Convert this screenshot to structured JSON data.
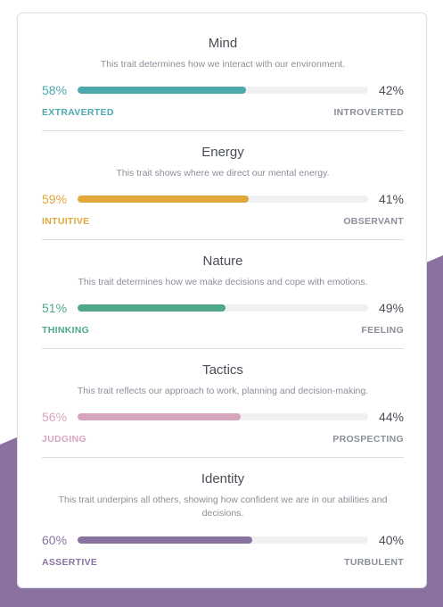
{
  "colors": {
    "mind": "#4ea9ad",
    "energy": "#e0a83b",
    "nature": "#4fa88b",
    "tactics": "#d7a4be",
    "identity": "#8a72a0",
    "background_shape": "#8a72a0"
  },
  "traits": [
    {
      "title": "Mind",
      "description": "This trait determines how we interact with our environment.",
      "left_percent": "58%",
      "right_percent": "42%",
      "left_label": "EXTRAVERTED",
      "right_label": "INTROVERTED",
      "fill": 0.58
    },
    {
      "title": "Energy",
      "description": "This trait shows where we direct our mental energy.",
      "left_percent": "59%",
      "right_percent": "41%",
      "left_label": "INTUITIVE",
      "right_label": "OBSERVANT",
      "fill": 0.59
    },
    {
      "title": "Nature",
      "description": "This trait determines how we make decisions and cope with emotions.",
      "left_percent": "51%",
      "right_percent": "49%",
      "left_label": "THINKING",
      "right_label": "FEELING",
      "fill": 0.51
    },
    {
      "title": "Tactics",
      "description": "This trait reflects our approach to work, planning and decision-making.",
      "left_percent": "56%",
      "right_percent": "44%",
      "left_label": "JUDGING",
      "right_label": "PROSPECTING",
      "fill": 0.56
    },
    {
      "title": "Identity",
      "description": "This trait underpins all others, showing how confident we are in our abilities and decisions.",
      "left_percent": "60%",
      "right_percent": "40%",
      "left_label": "ASSERTIVE",
      "right_label": "TURBULENT",
      "fill": 0.6
    }
  ]
}
